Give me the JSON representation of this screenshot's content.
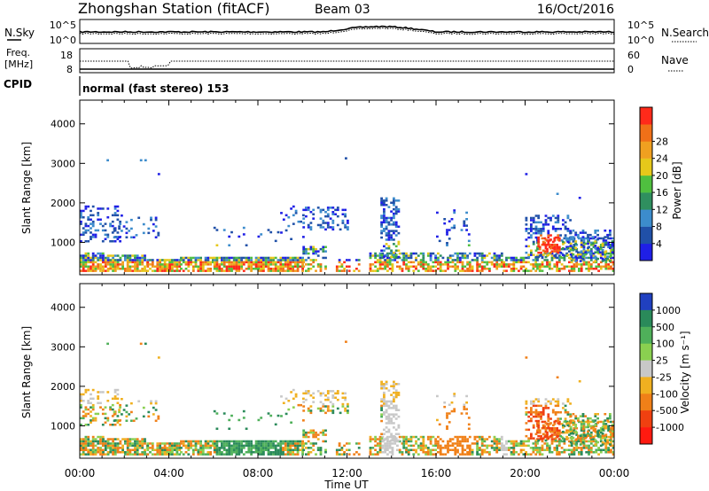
{
  "header": {
    "station": "Zhongshan Station (fitACF)",
    "beam": "Beam 03",
    "date": "16/Oct/2016"
  },
  "strip_nsky": {
    "label": "N.Sky",
    "right_label": "N.Search",
    "left_ticks": [
      {
        "t": "10^5",
        "v": 5
      },
      {
        "t": "10^0",
        "v": 0
      }
    ],
    "right_ticks": [
      {
        "t": "10^5",
        "v": 5
      },
      {
        "t": "10^0",
        "v": 0
      }
    ]
  },
  "strip_freq": {
    "label_line1": "Freq.",
    "label_line2": "[MHz]",
    "right_label": "Nave",
    "left_ticks": [
      {
        "t": "18",
        "v": 18
      },
      {
        "t": "8",
        "v": 8
      }
    ],
    "right_ticks": [
      {
        "t": "60",
        "v": 60
      },
      {
        "t": "0",
        "v": 0
      }
    ]
  },
  "cpid": {
    "label": "CPID",
    "text": "normal (fast stereo) 153"
  },
  "colors": {
    "power": [
      "#1f1fe6",
      "#2050a8",
      "#3c8ccc",
      "#2f8f5f",
      "#4fbf3f",
      "#e6c81a",
      "#f0a020",
      "#f07018",
      "#ff2a1a"
    ],
    "velocity": [
      "#2040c0",
      "#2a8a5a",
      "#4fb05a",
      "#8ad050",
      "#c8c8c8",
      "#f0b020",
      "#f08018",
      "#f04010",
      "#ff1a10"
    ]
  },
  "chart_data": [
    {
      "type": "heatmap",
      "name": "power",
      "xlabel": "",
      "ylabel": "Slant Range [km]",
      "x_ticks": [
        "00:00",
        "04:00",
        "08:00",
        "12:00",
        "16:00",
        "20:00",
        "00:00"
      ],
      "xlim": [
        0,
        24
      ],
      "ylim": [
        180,
        4600
      ],
      "y_ticks": [
        1000,
        2000,
        3000,
        4000
      ],
      "colorbar": {
        "label": "Power [dB]",
        "range": [
          0,
          32
        ],
        "ticks": [
          "4",
          "8",
          "12",
          "16",
          "20",
          "24",
          "28"
        ]
      }
    },
    {
      "type": "heatmap",
      "name": "velocity",
      "xlabel": "Time UT",
      "ylabel": "Slant Range [km]",
      "x_ticks": [
        "00:00",
        "04:00",
        "08:00",
        "12:00",
        "16:00",
        "20:00",
        "00:00"
      ],
      "xlim": [
        0,
        24
      ],
      "ylim": [
        180,
        4600
      ],
      "y_ticks": [
        1000,
        2000,
        3000,
        4000
      ],
      "colorbar": {
        "label": "Velocity [m s⁻¹]",
        "ticks": [
          "1000",
          "500",
          "100",
          "25",
          "-25",
          "-100",
          "-500",
          "-1000"
        ]
      }
    }
  ]
}
